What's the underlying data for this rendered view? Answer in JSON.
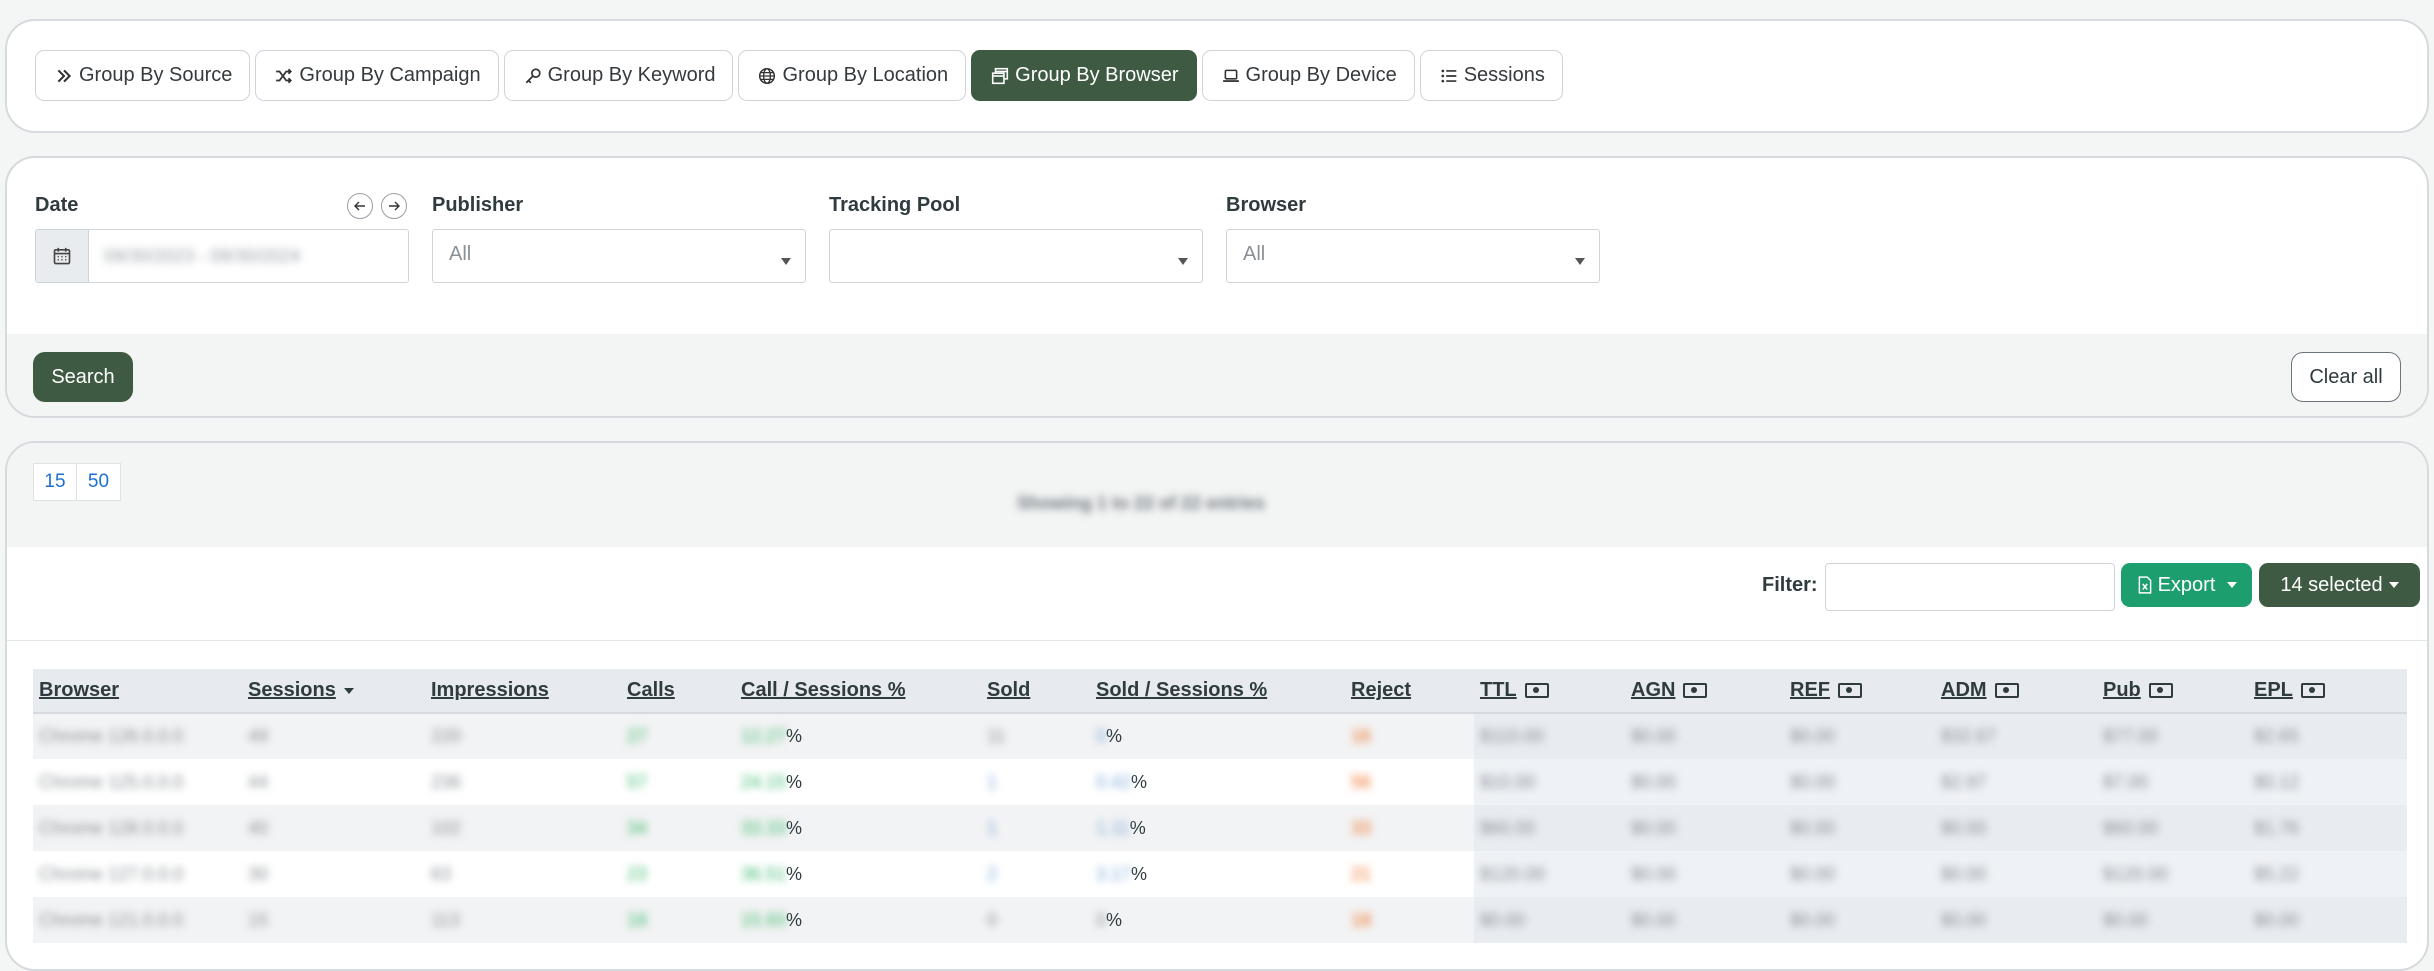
{
  "tabs": [
    {
      "label": "Group By Source",
      "icon": "double-chevron-right-icon",
      "active": false
    },
    {
      "label": "Group By Campaign",
      "icon": "shuffle-icon",
      "active": false
    },
    {
      "label": "Group By Keyword",
      "icon": "key-icon",
      "active": false
    },
    {
      "label": "Group By Location",
      "icon": "globe-icon",
      "active": false
    },
    {
      "label": "Group By Browser",
      "icon": "browser-windows-icon",
      "active": true
    },
    {
      "label": "Group By Device",
      "icon": "laptop-icon",
      "active": false
    },
    {
      "label": "Sessions",
      "icon": "list-icon",
      "active": false
    }
  ],
  "filters": {
    "date_label": "Date",
    "date_value": "09/30/2023 - 09/30/2024",
    "publisher_label": "Publisher",
    "publisher_value": "All",
    "tracking_pool_label": "Tracking Pool",
    "tracking_pool_value": "",
    "browser_label": "Browser",
    "browser_value": "All",
    "search_label": "Search",
    "clear_label": "Clear all"
  },
  "table_controls": {
    "page_sizes": [
      "15",
      "50"
    ],
    "showing": "Showing 1 to 22 of 22 entries",
    "filter_label": "Filter:",
    "export_label": "Export",
    "selected_label": "14 selected"
  },
  "columns": [
    "Browser",
    "Sessions",
    "Impressions",
    "Calls",
    "Call / Sessions %",
    "Sold",
    "Sold / Sessions %",
    "Reject",
    "TTL",
    "AGN",
    "REF",
    "ADM",
    "Pub",
    "EPL"
  ],
  "rows": [
    {
      "browser": "Chrome 126.0.0.0",
      "sessions": "49",
      "impressions": "220",
      "calls": "27",
      "call_pct": "12.27",
      "sold": "11",
      "sold_pct": "0",
      "reject": "16",
      "ttl": "$110.00",
      "agn": "$0.00",
      "ref": "$0.00",
      "adm": "$32.67",
      "pub": "$77.00",
      "epl": "$2.65"
    },
    {
      "browser": "Chrome 125.0.0.0",
      "sessions": "44",
      "impressions": "236",
      "calls": "57",
      "call_pct": "24.15",
      "sold": "1",
      "sold_pct": "0.42",
      "reject": "56",
      "ttl": "$10.00",
      "agn": "$0.00",
      "ref": "$0.00",
      "adm": "$2.97",
      "pub": "$7.00",
      "epl": "$0.12"
    },
    {
      "browser": "Chrome 128.0.0.0",
      "sessions": "40",
      "impressions": "102",
      "calls": "34",
      "call_pct": "33.33",
      "sold": "1",
      "sold_pct": "1.11",
      "reject": "33",
      "ttl": "$60.00",
      "agn": "$0.00",
      "ref": "$0.00",
      "adm": "$0.00",
      "pub": "$60.00",
      "epl": "$1.76"
    },
    {
      "browser": "Chrome 127.0.0.0",
      "sessions": "30",
      "impressions": "63",
      "calls": "23",
      "call_pct": "36.51",
      "sold": "2",
      "sold_pct": "3.17",
      "reject": "21",
      "ttl": "$120.00",
      "agn": "$0.00",
      "ref": "$0.00",
      "adm": "$0.00",
      "pub": "$120.00",
      "epl": "$5.22"
    },
    {
      "browser": "Chrome 121.0.0.0",
      "sessions": "15",
      "impressions": "113",
      "calls": "18",
      "call_pct": "15.93",
      "sold": "0",
      "sold_pct": "0",
      "reject": "18",
      "ttl": "$0.00",
      "agn": "$0.00",
      "ref": "$0.00",
      "adm": "$0.00",
      "pub": "$0.00",
      "epl": "$0.00"
    }
  ],
  "colors": {
    "accent": "#3e5a42",
    "export": "#1d9e6e",
    "calls": "#39b86b",
    "reject": "#f06a1c"
  }
}
